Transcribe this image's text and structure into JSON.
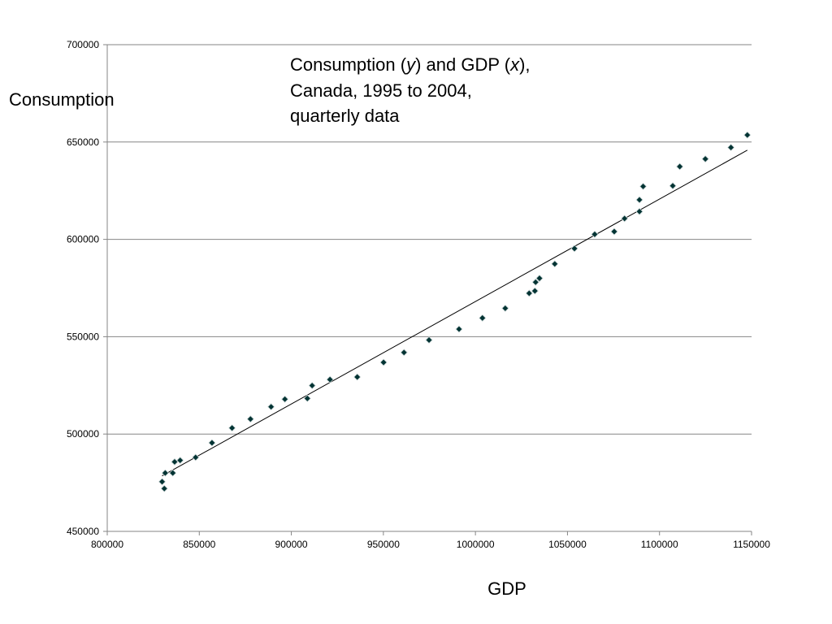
{
  "chart_data": {
    "type": "scatter",
    "title_parts": {
      "prefix": "Consumption (",
      "y_symbol": "y",
      "mid": ") and GDP (",
      "x_symbol": "x",
      "suffix": "),"
    },
    "title_line2": "Canada, 1995 to 2004,",
    "title_line3": "quarterly data",
    "xlabel": "GDP",
    "ylabel": "Consumption",
    "xlim": [
      800000,
      1150000
    ],
    "ylim": [
      450000,
      700000
    ],
    "x_ticks": [
      "800000",
      "850000",
      "900000",
      "950000",
      "1000000",
      "1050000",
      "1100000",
      "1150000"
    ],
    "y_ticks": [
      "450000",
      "500000",
      "550000",
      "600000",
      "650000",
      "700000"
    ],
    "grid": "horizontal",
    "marker_color": "#003333",
    "points": [
      {
        "x": 829800,
        "y": 475500
      },
      {
        "x": 831000,
        "y": 472000
      },
      {
        "x": 831500,
        "y": 480000
      },
      {
        "x": 835600,
        "y": 480000
      },
      {
        "x": 836600,
        "y": 485700
      },
      {
        "x": 839600,
        "y": 486500
      },
      {
        "x": 848000,
        "y": 488000
      },
      {
        "x": 856900,
        "y": 495500
      },
      {
        "x": 867800,
        "y": 503100
      },
      {
        "x": 877800,
        "y": 507700
      },
      {
        "x": 889000,
        "y": 514000
      },
      {
        "x": 896500,
        "y": 517900
      },
      {
        "x": 908700,
        "y": 518300
      },
      {
        "x": 911300,
        "y": 524900
      },
      {
        "x": 921000,
        "y": 528000
      },
      {
        "x": 935800,
        "y": 529300
      },
      {
        "x": 950100,
        "y": 536800
      },
      {
        "x": 961200,
        "y": 541900
      },
      {
        "x": 974800,
        "y": 548300
      },
      {
        "x": 991100,
        "y": 553900
      },
      {
        "x": 1003800,
        "y": 559600
      },
      {
        "x": 1016200,
        "y": 564600
      },
      {
        "x": 1029200,
        "y": 572300
      },
      {
        "x": 1032300,
        "y": 573500
      },
      {
        "x": 1032700,
        "y": 578000
      },
      {
        "x": 1034800,
        "y": 580000
      },
      {
        "x": 1043100,
        "y": 587400
      },
      {
        "x": 1053800,
        "y": 595300
      },
      {
        "x": 1064800,
        "y": 602600
      },
      {
        "x": 1075400,
        "y": 604000
      },
      {
        "x": 1081000,
        "y": 610700
      },
      {
        "x": 1089100,
        "y": 614300
      },
      {
        "x": 1089100,
        "y": 620300
      },
      {
        "x": 1091100,
        "y": 627200
      },
      {
        "x": 1107200,
        "y": 627500
      },
      {
        "x": 1111000,
        "y": 637400
      },
      {
        "x": 1124900,
        "y": 641300
      },
      {
        "x": 1138800,
        "y": 647200
      },
      {
        "x": 1147700,
        "y": 653600
      }
    ],
    "trendline": {
      "type": "linear",
      "from": {
        "x": 829800,
        "y": 478500
      },
      "to": {
        "x": 1147700,
        "y": 645800
      }
    }
  }
}
